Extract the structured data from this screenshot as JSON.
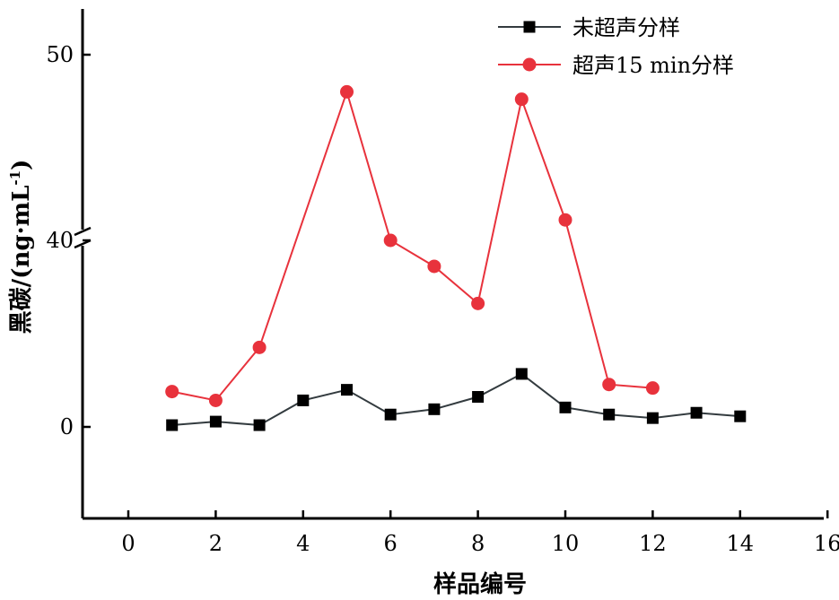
{
  "chart_data": {
    "type": "line",
    "title": "",
    "xlabel": "样品编号",
    "ylabel": "黑碳/(ng·mL",
    "ylabel_sup": "-1",
    "ylabel_end": ")",
    "xlim": [
      0,
      16
    ],
    "x_ticks": [
      0,
      2,
      4,
      6,
      8,
      10,
      12,
      14,
      16
    ],
    "y_ticks": [
      0,
      40,
      50
    ],
    "y_axis_break": true,
    "y_break_at": 40,
    "grid": false,
    "legend_position": "top-right",
    "series": [
      {
        "name": "未超声分样",
        "color": "#333b3f",
        "marker": "square",
        "x": [
          1,
          2,
          3,
          4,
          5,
          6,
          7,
          8,
          9,
          10,
          11,
          12,
          13,
          14
        ],
        "y": [
          0.1,
          0.3,
          0.1,
          1.5,
          2.1,
          0.7,
          1.0,
          1.7,
          3.0,
          1.1,
          0.7,
          0.5,
          0.8,
          0.6
        ]
      },
      {
        "name": "超声15 min分样",
        "color": "#e8323c",
        "marker": "circle",
        "x": [
          1,
          2,
          3,
          5,
          6,
          7,
          8,
          9,
          10,
          11,
          12
        ],
        "y": [
          2.0,
          1.5,
          4.5,
          48.0,
          40.0,
          38.6,
          36.6,
          47.6,
          41.1,
          2.4,
          2.2
        ]
      }
    ]
  }
}
